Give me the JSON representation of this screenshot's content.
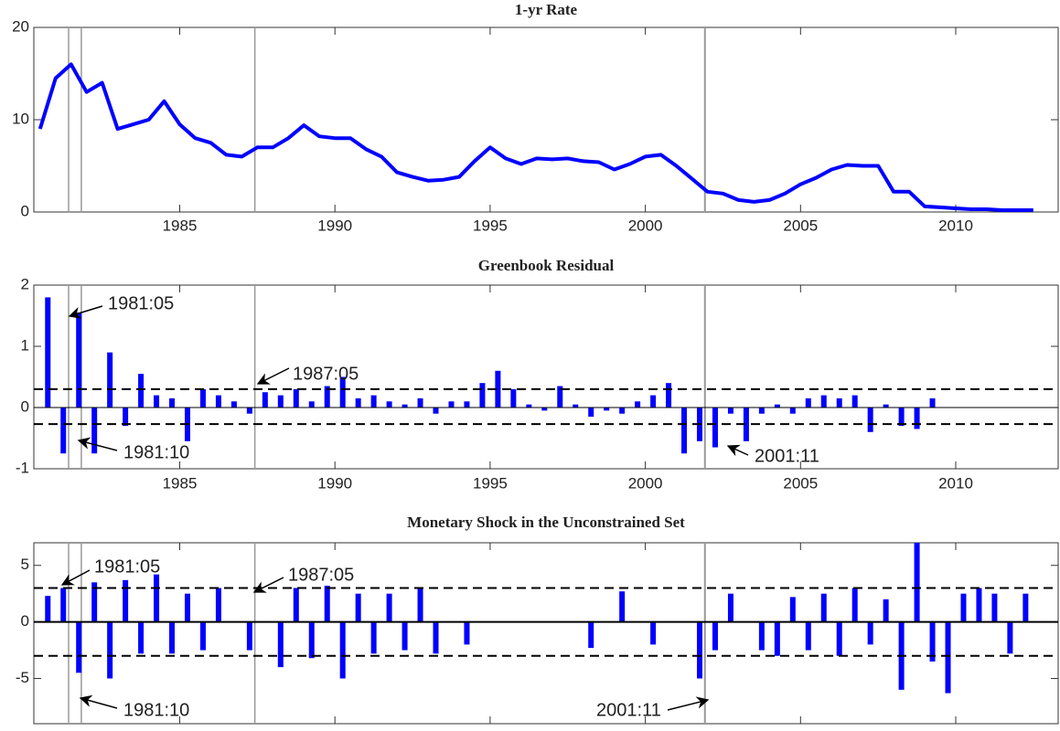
{
  "chart_data": [
    {
      "type": "line",
      "title": "1-yr Rate",
      "color": "#0000ff",
      "x": [
        1980.5,
        1981.0,
        1981.5,
        1982.0,
        1982.5,
        1983.0,
        1983.5,
        1984.0,
        1984.5,
        1985.0,
        1985.5,
        1986.0,
        1986.5,
        1987.0,
        1987.5,
        1988.0,
        1988.5,
        1989.0,
        1989.5,
        1990.0,
        1990.5,
        1991.0,
        1991.5,
        1992.0,
        1992.5,
        1993.0,
        1993.5,
        1994.0,
        1994.5,
        1995.0,
        1995.5,
        1996.0,
        1996.5,
        1997.0,
        1997.5,
        1998.0,
        1998.5,
        1999.0,
        1999.5,
        2000.0,
        2000.5,
        2001.0,
        2001.5,
        2002.0,
        2002.5,
        2003.0,
        2003.5,
        2004.0,
        2004.5,
        2005.0,
        2005.5,
        2006.0,
        2006.5,
        2007.0,
        2007.5,
        2008.0,
        2008.5,
        2009.0,
        2009.5,
        2010.0,
        2010.5,
        2011.0,
        2011.5,
        2012.0,
        2012.5
      ],
      "values": [
        9,
        14.5,
        16,
        13,
        14,
        9,
        9.5,
        10,
        12,
        9.5,
        8,
        7.5,
        6.2,
        6,
        7,
        7,
        8,
        9.4,
        8.2,
        8,
        8,
        6.8,
        6,
        4.3,
        3.8,
        3.4,
        3.5,
        3.8,
        5.5,
        7,
        5.8,
        5.2,
        5.8,
        5.7,
        5.8,
        5.5,
        5.4,
        4.6,
        5.2,
        6,
        6.2,
        5,
        3.6,
        2.2,
        2,
        1.3,
        1.1,
        1.3,
        2,
        3,
        3.7,
        4.6,
        5.1,
        5,
        5,
        2.2,
        2.2,
        0.6,
        0.5,
        0.4,
        0.3,
        0.3,
        0.2,
        0.2,
        0.2
      ],
      "xlim": [
        1980.3,
        2013.3
      ],
      "xticks": [
        1985,
        1990,
        1995,
        2000,
        2005,
        2010
      ],
      "ylim": [
        0,
        20
      ],
      "yticks": [
        0,
        10,
        20
      ],
      "event_lines": [
        1981.42,
        1981.83,
        1987.42,
        2001.92
      ]
    },
    {
      "type": "bar",
      "title": "Greenbook Residual",
      "color": "#0000ff",
      "x": [
        1980.75,
        1981.25,
        1981.75,
        1982.25,
        1982.75,
        1983.25,
        1983.75,
        1984.25,
        1984.75,
        1985.25,
        1985.75,
        1986.25,
        1986.75,
        1987.25,
        1987.75,
        1988.25,
        1988.75,
        1989.25,
        1989.75,
        1990.25,
        1990.75,
        1991.25,
        1991.75,
        1992.25,
        1992.75,
        1993.25,
        1993.75,
        1994.25,
        1994.75,
        1995.25,
        1995.75,
        1996.25,
        1996.75,
        1997.25,
        1997.75,
        1998.25,
        1998.75,
        1999.25,
        1999.75,
        2000.25,
        2000.75,
        2001.25,
        2001.75,
        2002.25,
        2002.75,
        2003.25,
        2003.75,
        2004.25,
        2004.75,
        2005.25,
        2005.75,
        2006.25,
        2006.75,
        2007.25,
        2007.75,
        2008.25,
        2008.75,
        2009.25
      ],
      "values": [
        1.8,
        -0.75,
        1.55,
        -0.75,
        0.9,
        -0.3,
        0.55,
        0.2,
        0.15,
        -0.55,
        0.3,
        0.2,
        0.1,
        -0.1,
        0.25,
        0.2,
        0.3,
        0.1,
        0.35,
        0.5,
        0.15,
        0.2,
        0.1,
        0.05,
        0.15,
        -0.1,
        0.1,
        0.1,
        0.4,
        0.6,
        0.3,
        0.05,
        -0.05,
        0.35,
        0.05,
        -0.15,
        -0.05,
        -0.1,
        0.1,
        0.2,
        0.4,
        -0.75,
        -0.55,
        -0.65,
        -0.1,
        -0.55,
        -0.1,
        0.05,
        -0.1,
        0.15,
        0.2,
        0.15,
        0.2,
        -0.4,
        0.05,
        -0.3,
        -0.35,
        0.15
      ],
      "xlim": [
        1980.3,
        2013.3
      ],
      "xticks": [
        1985,
        1990,
        1995,
        2000,
        2005,
        2010
      ],
      "ylim": [
        -1,
        2
      ],
      "yticks": [
        -1,
        0,
        1,
        2
      ],
      "thresholds": [
        0.3,
        -0.27
      ],
      "event_lines": [
        1981.42,
        1981.83,
        1987.42,
        2001.92
      ],
      "annotations": [
        "1981:05",
        "1987:05",
        "1981:10",
        "2001:11"
      ]
    },
    {
      "type": "bar",
      "title": "Monetary Shock in the Unconstrained Set",
      "color": "#0000ff",
      "x": [
        1980.75,
        1981.25,
        1981.75,
        1982.25,
        1982.75,
        1983.25,
        1983.75,
        1984.25,
        1984.75,
        1985.25,
        1985.75,
        1986.25,
        1986.75,
        1987.25,
        1987.75,
        1988.25,
        1988.75,
        1989.25,
        1989.75,
        1990.25,
        1990.75,
        1991.25,
        1991.75,
        1992.25,
        1992.75,
        1993.25,
        1993.75,
        1994.25,
        1994.75,
        1995.25,
        1995.75,
        1996.25,
        1996.75,
        1997.25,
        1997.75,
        1998.25,
        1998.75,
        1999.25,
        1999.75,
        2000.25,
        2000.75,
        2001.25,
        2001.75,
        2002.25,
        2002.75,
        2003.25,
        2003.75,
        2004.25,
        2004.75,
        2005.25,
        2005.75,
        2006.25,
        2006.75,
        2007.25,
        2007.75,
        2008.25,
        2008.75,
        2009.25,
        2009.75,
        2010.25,
        2010.75,
        2011.25,
        2011.75,
        2012.25
      ],
      "values": [
        2.3,
        3,
        -4.5,
        3.5,
        -5,
        3.7,
        -2.8,
        4.2,
        -2.8,
        2.5,
        -2.5,
        3,
        0,
        -2.5,
        0,
        -4,
        3,
        -3.2,
        3.2,
        -5,
        2.5,
        -2.8,
        2.5,
        -2.5,
        3,
        -2.8,
        0,
        -2,
        0,
        0,
        0,
        0,
        0,
        0,
        0,
        -2.3,
        0,
        2.7,
        0,
        -2,
        0,
        0,
        -5,
        -2.5,
        2.5,
        0,
        -2.5,
        -3,
        2.2,
        -2.5,
        2.5,
        -3,
        3,
        -2,
        2,
        -6,
        7,
        -3.5,
        -6.3,
        2.5,
        3,
        2.5,
        -2.8,
        2.5
      ],
      "xlim": [
        1980.3,
        2013.3
      ],
      "xticks": [
        1985,
        1990,
        1995,
        2000,
        2005,
        2010
      ],
      "ylim": [
        -9,
        7
      ],
      "yticks": [
        -5,
        0,
        5
      ],
      "thresholds": [
        3,
        -3
      ],
      "event_lines": [
        1981.42,
        1981.83,
        1987.42,
        2001.92
      ],
      "annotations": [
        "1981:05",
        "1987:05",
        "1981:10",
        "2001:11"
      ]
    }
  ]
}
